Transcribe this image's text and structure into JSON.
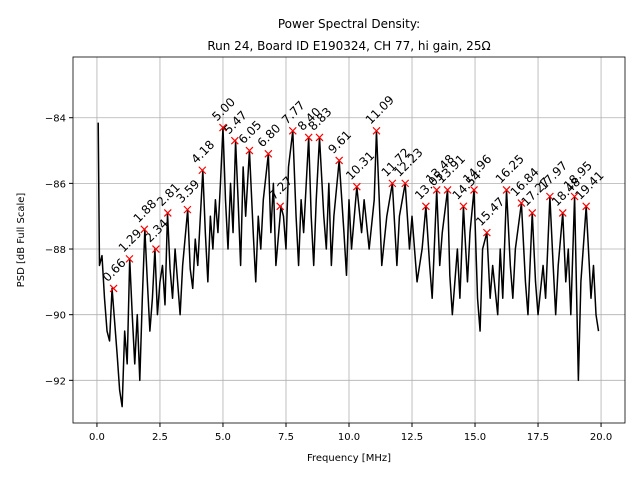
{
  "chart_data": {
    "type": "line",
    "title": [
      "Power Spectral Density:",
      "Run 24, Board ID E190324, CH 77, hi gain, 25Ω"
    ],
    "xlabel": "Frequency [MHz]",
    "ylabel": "PSD [dB Full Scale]",
    "xlim": [
      -0.95,
      20.95
    ],
    "ylim": [
      -93.3,
      -82.15
    ],
    "xticks": [
      {
        "value": 0,
        "label": "0.0"
      },
      2.5,
      {
        "value": 5,
        "label": "5.0"
      },
      7.5,
      {
        "value": 10,
        "label": "10.0"
      },
      12.5,
      {
        "value": 15,
        "label": "15.0"
      },
      17.5,
      {
        "value": 20,
        "label": "20.0"
      }
    ],
    "yticks": [
      {
        "value": -92,
        "label": "−92"
      },
      {
        "value": -90,
        "label": "−90"
      },
      {
        "value": -88,
        "label": "−88"
      },
      {
        "value": -86,
        "label": "−86"
      },
      {
        "value": -84,
        "label": "−84"
      }
    ],
    "grid": true,
    "series": [
      {
        "color": "#000000",
        "x": [
          0.05,
          0.1,
          0.2,
          0.3,
          0.4,
          0.5,
          0.6,
          0.7,
          0.8,
          0.9,
          1.0,
          1.1,
          1.2,
          1.3,
          1.4,
          1.5,
          1.6,
          1.7,
          1.8,
          1.9,
          2.0,
          2.1,
          2.2,
          2.3,
          2.4,
          2.5,
          2.6,
          2.7,
          2.8,
          2.9,
          3.0,
          3.1,
          3.2,
          3.3,
          3.4,
          3.6,
          3.7,
          3.8,
          3.9,
          4.0,
          4.2,
          4.3,
          4.4,
          4.5,
          4.6,
          4.7,
          4.8,
          4.9,
          5.0,
          5.1,
          5.2,
          5.3,
          5.4,
          5.5,
          5.6,
          5.7,
          5.8,
          5.9,
          6.05,
          6.2,
          6.3,
          6.4,
          6.5,
          6.6,
          6.8,
          6.9,
          7.0,
          7.1,
          7.3,
          7.4,
          7.5,
          7.6,
          7.77,
          7.9,
          8.0,
          8.1,
          8.2,
          8.4,
          8.5,
          8.6,
          8.7,
          8.83,
          9.0,
          9.1,
          9.2,
          9.3,
          9.4,
          9.61,
          9.8,
          9.9,
          10.0,
          10.1,
          10.31,
          10.5,
          10.6,
          10.8,
          11.0,
          11.09,
          11.2,
          11.3,
          11.5,
          11.72,
          11.9,
          12.0,
          12.23,
          12.4,
          12.5,
          12.7,
          12.9,
          13.05,
          13.2,
          13.3,
          13.48,
          13.6,
          13.7,
          13.91,
          14.0,
          14.1,
          14.3,
          14.4,
          14.54,
          14.7,
          14.8,
          14.96,
          15.1,
          15.2,
          15.3,
          15.47,
          15.6,
          15.7,
          15.9,
          16.0,
          16.1,
          16.25,
          16.4,
          16.5,
          16.6,
          16.84,
          17.0,
          17.1,
          17.27,
          17.4,
          17.5,
          17.7,
          17.8,
          17.97,
          18.1,
          18.2,
          18.3,
          18.48,
          18.6,
          18.7,
          18.8,
          18.95,
          19.1,
          19.2,
          19.41,
          19.5,
          19.6,
          19.7,
          19.8,
          19.9
        ],
        "values": [
          -84.15,
          -88.5,
          -88.2,
          -89.5,
          -90.5,
          -90.8,
          -89.2,
          -90.2,
          -91.2,
          -92.3,
          -92.8,
          -90.5,
          -91.5,
          -88.3,
          -90.0,
          -91.5,
          -90.0,
          -92.0,
          -89.5,
          -87.4,
          -89.0,
          -90.5,
          -89.5,
          -88.0,
          -90.0,
          -89.0,
          -88.5,
          -89.7,
          -86.9,
          -88.6,
          -89.5,
          -88.0,
          -89.0,
          -90.0,
          -88.5,
          -86.8,
          -88.6,
          -89.2,
          -87.7,
          -88.5,
          -85.6,
          -87.5,
          -89.0,
          -87.0,
          -88.0,
          -86.5,
          -87.5,
          -86.0,
          -84.3,
          -86.5,
          -88.0,
          -86.0,
          -87.5,
          -84.7,
          -86.5,
          -88.5,
          -85.5,
          -87.0,
          -85.0,
          -87.5,
          -89.0,
          -87.0,
          -88.0,
          -86.5,
          -85.1,
          -87.5,
          -86.0,
          -88.5,
          -86.7,
          -87.0,
          -88.0,
          -85.5,
          -84.4,
          -87.0,
          -88.5,
          -86.5,
          -87.5,
          -84.6,
          -87.0,
          -88.5,
          -86.5,
          -84.6,
          -87.0,
          -88.0,
          -86.0,
          -88.5,
          -87.0,
          -85.3,
          -87.5,
          -88.8,
          -86.5,
          -88.0,
          -86.1,
          -87.5,
          -86.5,
          -88.0,
          -86.5,
          -84.4,
          -86.5,
          -88.5,
          -87.0,
          -86.0,
          -88.5,
          -87.0,
          -86.0,
          -88.0,
          -87.0,
          -89.0,
          -88.0,
          -86.7,
          -88.5,
          -89.5,
          -86.2,
          -88.5,
          -87.5,
          -86.2,
          -88.8,
          -90.0,
          -88.0,
          -89.5,
          -86.7,
          -89.0,
          -87.5,
          -86.2,
          -89.5,
          -90.5,
          -88.0,
          -87.5,
          -89.5,
          -88.5,
          -90.0,
          -88.0,
          -89.5,
          -86.2,
          -88.5,
          -89.5,
          -88.0,
          -86.6,
          -89.0,
          -90.0,
          -86.9,
          -89.0,
          -90.0,
          -88.5,
          -89.5,
          -86.4,
          -88.5,
          -90.0,
          -88.5,
          -86.9,
          -89.0,
          -88.0,
          -90.0,
          -86.4,
          -92.0,
          -89.0,
          -86.7,
          -88.0,
          -89.5,
          -88.5,
          -90.0,
          -90.5
        ]
      },
      {
        "marker": "x",
        "color": "#ff0000",
        "x": [
          0.66,
          1.29,
          1.88,
          2.34,
          2.81,
          3.59,
          4.18,
          5.0,
          5.47,
          6.05,
          6.8,
          7.27,
          7.77,
          8.4,
          8.83,
          9.61,
          10.31,
          11.09,
          11.72,
          12.23,
          13.05,
          13.48,
          13.91,
          14.54,
          14.96,
          15.47,
          16.25,
          16.84,
          17.27,
          17.97,
          18.48,
          18.95,
          19.41
        ],
        "values": [
          -89.2,
          -88.3,
          -87.4,
          -88.0,
          -86.9,
          -86.8,
          -85.6,
          -84.3,
          -84.7,
          -85.0,
          -85.1,
          -86.7,
          -84.4,
          -84.6,
          -84.6,
          -85.3,
          -86.1,
          -84.4,
          -86.0,
          -86.0,
          -86.7,
          -86.2,
          -86.2,
          -86.7,
          -86.2,
          -87.5,
          -86.2,
          -86.6,
          -86.9,
          -86.4,
          -86.9,
          -86.4,
          -86.7
        ],
        "point_labels": [
          "0.66",
          "1.29",
          "1.88",
          "2.34",
          "2.81",
          "3.59",
          "4.18",
          "5.00",
          "5.47",
          "6.05",
          "6.80",
          "7.27",
          "7.77",
          "8.40",
          "8.83",
          "9.61",
          "10.31",
          "11.09",
          "11.72",
          "12.23",
          "13.05",
          "13.48",
          "13.91",
          "14.54",
          "14.96",
          "15.47",
          "16.25",
          "16.84",
          "17.27",
          "17.97",
          "18.48",
          "18.95",
          "19.41"
        ]
      }
    ]
  }
}
